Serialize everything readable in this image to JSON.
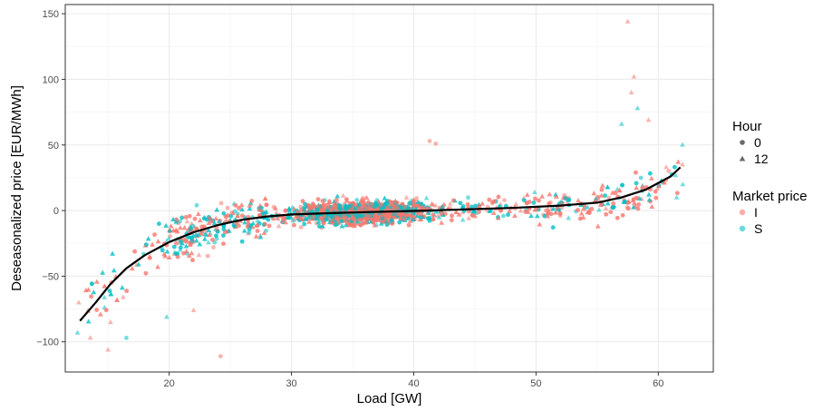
{
  "chart_data": {
    "type": "scatter",
    "title": "",
    "xlabel": "Load [GW]",
    "ylabel": "Deseasonalized price [EUR/MWh]",
    "xlim": [
      11.5,
      64.5
    ],
    "ylim": [
      -123,
      157
    ],
    "x_ticks": [
      20,
      30,
      40,
      50,
      60
    ],
    "y_ticks": [
      -100,
      -50,
      0,
      50,
      100,
      150
    ],
    "x_tick_labels": [
      "20",
      "30",
      "40",
      "50",
      "60"
    ],
    "y_tick_labels": [
      "−100",
      "−50",
      "0",
      "50",
      "100",
      "150"
    ],
    "grid": true,
    "legend_position": "right",
    "legends": [
      {
        "title": "Hour",
        "entries": [
          {
            "label": "0",
            "shape": "circle"
          },
          {
            "label": "12",
            "shape": "triangle"
          }
        ]
      },
      {
        "title": "Market price",
        "entries": [
          {
            "label": "I",
            "color": "#F8766D"
          },
          {
            "label": "S",
            "color": "#00BFC4"
          }
        ]
      }
    ],
    "colors": {
      "I": "#F8766D",
      "S": "#00BFC4",
      "neutral": "#595959",
      "fit": "#000000"
    },
    "fit_line": {
      "name": "",
      "x": [
        12.7,
        14,
        15.2,
        16.5,
        18,
        20,
        22,
        24,
        26,
        28,
        30,
        33,
        36,
        40,
        44,
        48,
        52,
        55,
        57,
        59,
        61,
        61.8
      ],
      "y": [
        -84,
        -70,
        -56,
        -44,
        -34,
        -24,
        -16.5,
        -11,
        -7,
        -4.5,
        -3,
        -2,
        -1.2,
        -0.3,
        0.8,
        2,
        3.8,
        6,
        10,
        16,
        26,
        33
      ]
    },
    "highlighted_points": [
      {
        "x": 57.5,
        "y": 144,
        "hour": "12",
        "market": "I"
      },
      {
        "x": 58.0,
        "y": 102,
        "hour": "12",
        "market": "I"
      },
      {
        "x": 57.8,
        "y": 90,
        "hour": "12",
        "market": "I"
      },
      {
        "x": 58.3,
        "y": 78,
        "hour": "12",
        "market": "S"
      },
      {
        "x": 59.2,
        "y": 69,
        "hour": "12",
        "market": "I"
      },
      {
        "x": 57.0,
        "y": 66,
        "hour": "12",
        "market": "S"
      },
      {
        "x": 41.3,
        "y": 53,
        "hour": "0",
        "market": "I"
      },
      {
        "x": 41.8,
        "y": 51,
        "hour": "0",
        "market": "I"
      },
      {
        "x": 12.6,
        "y": -70,
        "hour": "12",
        "market": "I"
      },
      {
        "x": 12.5,
        "y": -93,
        "hour": "12",
        "market": "S"
      },
      {
        "x": 15.0,
        "y": -106,
        "hour": "12",
        "market": "I"
      },
      {
        "x": 15.2,
        "y": -85,
        "hour": "12",
        "market": "I"
      },
      {
        "x": 16.5,
        "y": -97,
        "hour": "0",
        "market": "S"
      },
      {
        "x": 19.8,
        "y": -81,
        "hour": "12",
        "market": "S"
      },
      {
        "x": 22.0,
        "y": -76,
        "hour": "12",
        "market": "I"
      },
      {
        "x": 24.2,
        "y": -111,
        "hour": "0",
        "market": "I"
      },
      {
        "x": 61.5,
        "y": 10,
        "hour": "12",
        "market": "S"
      },
      {
        "x": 62.0,
        "y": 20,
        "hour": "12",
        "market": "S"
      }
    ],
    "bulk_points_note": ""
  }
}
